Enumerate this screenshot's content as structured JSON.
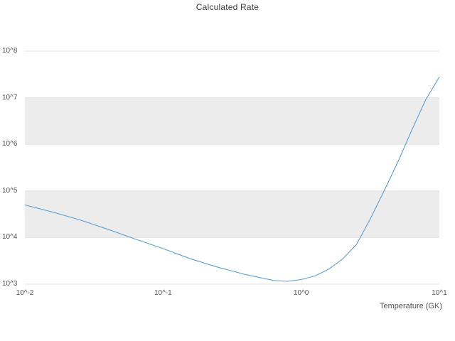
{
  "title": "Calculated Rate",
  "axes": {
    "x_label": "Temperature (GK)",
    "x_ticks": [
      {
        "label": "10^-2",
        "log": -2
      },
      {
        "label": "10^-1",
        "log": -1
      },
      {
        "label": "10^0",
        "log": 0
      },
      {
        "label": "10^1",
        "log": 1
      }
    ],
    "y_ticks": [
      {
        "label": "10^8",
        "log": 8
      },
      {
        "label": "10^7",
        "log": 7
      },
      {
        "label": "10^6",
        "log": 6
      },
      {
        "label": "10^5",
        "log": 5
      },
      {
        "label": "10^4",
        "log": 4
      },
      {
        "label": "10^3",
        "log": 3
      }
    ]
  },
  "colors": {
    "line": "#5b9fd4",
    "band": "#ececec",
    "grid": "#e2e2e2",
    "text": "#555555",
    "title": "#3a3a3a"
  },
  "chart_data": {
    "type": "line",
    "title": "Calculated Rate",
    "xlabel": "Temperature (GK)",
    "ylabel": "",
    "x_scale": "log",
    "y_scale": "log",
    "xlim": [
      0.01,
      10
    ],
    "ylim": [
      1000,
      100000000
    ],
    "grid": "horizontal-decade-lines-with-alternating-gray-bands",
    "legend": "none",
    "shaded_bands_log10": [
      [
        4,
        5
      ],
      [
        6,
        7
      ]
    ],
    "series": [
      {
        "name": "calculated rate",
        "points": [
          [
            0.01,
            50000
          ],
          [
            0.016,
            35000
          ],
          [
            0.025,
            24000
          ],
          [
            0.04,
            15000
          ],
          [
            0.063,
            9300
          ],
          [
            0.1,
            5800
          ],
          [
            0.158,
            3500
          ],
          [
            0.251,
            2300
          ],
          [
            0.398,
            1600
          ],
          [
            0.631,
            1200
          ],
          [
            0.794,
            1150
          ],
          [
            1.0,
            1260
          ],
          [
            1.26,
            1500
          ],
          [
            1.58,
            2100
          ],
          [
            2.0,
            3500
          ],
          [
            2.51,
            7100
          ],
          [
            3.16,
            25000
          ],
          [
            3.98,
            100000
          ],
          [
            5.01,
            420000
          ],
          [
            6.31,
            2000000
          ],
          [
            7.94,
            8900000
          ],
          [
            10.0,
            28000000
          ]
        ]
      }
    ]
  }
}
